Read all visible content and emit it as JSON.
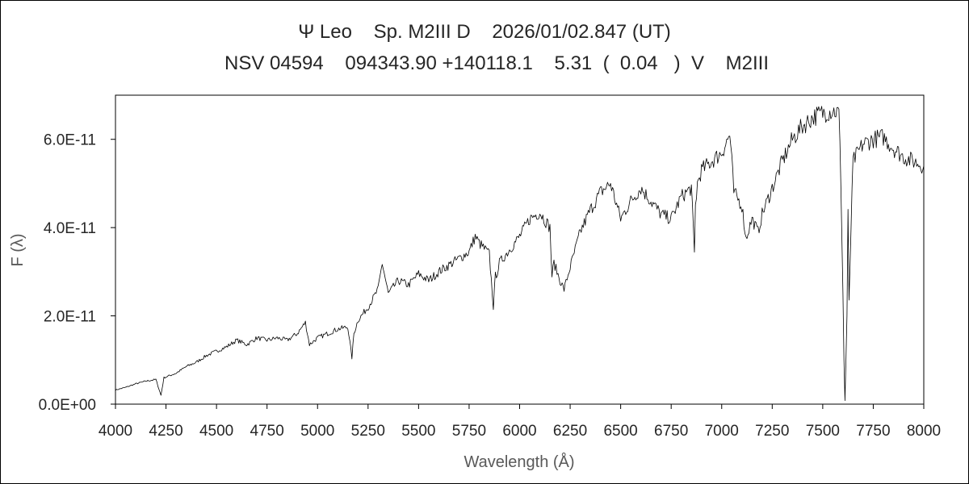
{
  "chart_data": {
    "type": "line",
    "title": "Ψ Leo    Sp. M2III D    2026/01/02.847 (UT)",
    "subtitle": "NSV 04594    094343.90 +140118.1    5.31  (  0.04   )  V    M2III",
    "xlabel": "Wavelength (Å)",
    "ylabel": "F (λ)",
    "xlim": [
      4000,
      8000
    ],
    "ylim": [
      0,
      7e-11
    ],
    "xticks": [
      4000,
      4250,
      4500,
      4750,
      5000,
      5250,
      5500,
      5750,
      6000,
      6250,
      6500,
      6750,
      7000,
      7250,
      7500,
      7750,
      8000
    ],
    "xtick_labels": [
      "4000",
      "4250",
      "4500",
      "4750",
      "5000",
      "5250",
      "5500",
      "5750",
      "6000",
      "6250",
      "6500",
      "6750",
      "7000",
      "7250",
      "7500",
      "7750",
      "8000"
    ],
    "yticks": [
      0,
      2e-11,
      4e-11,
      6e-11
    ],
    "ytick_labels": [
      "0.0E+00",
      "2.0E-11",
      "4.0E-11",
      "6.0E-11"
    ],
    "grid": false,
    "legend": "none",
    "series": [
      {
        "color": "#000000",
        "x": [
          4000,
          4050,
          4100,
          4150,
          4200,
          4225,
          4240,
          4300,
          4350,
          4400,
          4450,
          4500,
          4550,
          4600,
          4650,
          4700,
          4750,
          4800,
          4850,
          4900,
          4940,
          4960,
          5000,
          5050,
          5100,
          5150,
          5170,
          5180,
          5200,
          5250,
          5300,
          5320,
          5350,
          5400,
          5450,
          5500,
          5550,
          5600,
          5650,
          5700,
          5750,
          5780,
          5800,
          5850,
          5870,
          5880,
          5890,
          5900,
          5950,
          6000,
          6050,
          6100,
          6150,
          6160,
          6170,
          6200,
          6220,
          6250,
          6300,
          6350,
          6400,
          6450,
          6500,
          6550,
          6600,
          6650,
          6700,
          6750,
          6800,
          6850,
          6865,
          6870,
          6880,
          6900,
          6950,
          7000,
          7040,
          7050,
          7060,
          7100,
          7120,
          7150,
          7180,
          7200,
          7250,
          7300,
          7350,
          7400,
          7450,
          7500,
          7550,
          7580,
          7590,
          7600,
          7605,
          7610,
          7620,
          7625,
          7630,
          7640,
          7650,
          7700,
          7750,
          7800,
          7850,
          7900,
          7950,
          8000
        ],
        "y": [
          3.2e-12,
          3.8e-12,
          4.6e-12,
          5.2e-12,
          5.6e-12,
          2e-12,
          6e-12,
          7e-12,
          8.5e-12,
          9.5e-12,
          1.1e-11,
          1.2e-11,
          1.3e-11,
          1.45e-11,
          1.35e-11,
          1.5e-11,
          1.45e-11,
          1.5e-11,
          1.45e-11,
          1.6e-11,
          1.85e-11,
          1.35e-11,
          1.5e-11,
          1.6e-11,
          1.7e-11,
          1.75e-11,
          1.05e-11,
          1.6e-11,
          1.9e-11,
          2.2e-11,
          2.6e-11,
          3.2e-11,
          2.5e-11,
          2.8e-11,
          2.7e-11,
          2.95e-11,
          2.8e-11,
          3e-11,
          3.15e-11,
          3.3e-11,
          3.45e-11,
          3.8e-11,
          3.65e-11,
          3.4e-11,
          2.2e-11,
          2.9e-11,
          3e-11,
          3.2e-11,
          3.5e-11,
          3.8e-11,
          4.2e-11,
          4.35e-11,
          4e-11,
          2.9e-11,
          3.2e-11,
          2.8e-11,
          2.6e-11,
          3.1e-11,
          3.9e-11,
          4.4e-11,
          4.8e-11,
          5e-11,
          4.2e-11,
          4.6e-11,
          4.9e-11,
          4.6e-11,
          4.3e-11,
          4.2e-11,
          4.7e-11,
          4.9e-11,
          3.4e-11,
          4.5e-11,
          5e-11,
          5.3e-11,
          5.5e-11,
          5.7e-11,
          6.1e-11,
          5.5e-11,
          4.8e-11,
          4.5e-11,
          3.75e-11,
          4.2e-11,
          3.9e-11,
          4.3e-11,
          4.9e-11,
          5.5e-11,
          6e-11,
          6.3e-11,
          6.5e-11,
          6.6e-11,
          6.65e-11,
          6.6e-11,
          5e-11,
          2.5e-11,
          1e-11,
          8e-13,
          2e-11,
          4.3e-11,
          2.3e-11,
          4e-11,
          5.5e-11,
          5.9e-11,
          6e-11,
          6.05e-11,
          5.8e-11,
          5.6e-11,
          5.5e-11,
          5.4e-11
        ]
      }
    ]
  }
}
